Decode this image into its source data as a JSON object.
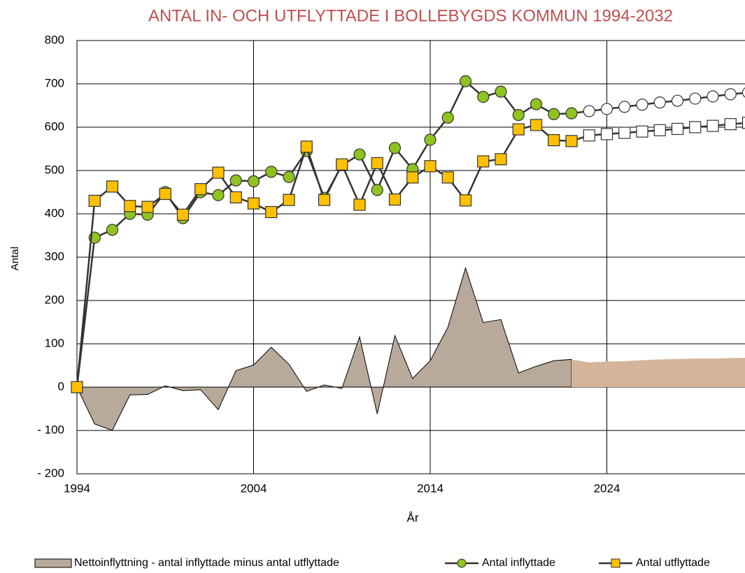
{
  "chart_data": {
    "type": "line",
    "title": "ANTAL IN- OCH UTFLYTTADE I BOLLEBYGDS KOMMUN 1994-2032",
    "x_label": "År",
    "y_label": "Antal",
    "x": [
      1994,
      1995,
      1996,
      1997,
      1998,
      1999,
      2000,
      2001,
      2002,
      2003,
      2004,
      2005,
      2006,
      2007,
      2008,
      2009,
      2010,
      2011,
      2012,
      2013,
      2014,
      2015,
      2016,
      2017,
      2018,
      2019,
      2020,
      2021,
      2022,
      2023,
      2024,
      2025,
      2026,
      2027,
      2028,
      2029,
      2030,
      2031,
      2032
    ],
    "series": [
      {
        "name": "Nettoinflyttning - antal inflyttade minus antal utflyttade",
        "type": "area",
        "color": "#b8a99a",
        "forecast_color": "#d4b59b",
        "values": [
          0,
          -85,
          -100,
          -18,
          -17,
          3,
          -8,
          -6,
          -52,
          38,
          51,
          92,
          53,
          -10,
          5,
          -3,
          116,
          -62,
          119,
          20,
          61,
          138,
          275,
          149,
          156,
          33,
          48,
          61,
          64,
          57,
          59,
          60,
          62,
          64,
          65,
          66,
          66,
          67,
          68
        ]
      },
      {
        "name": "Antal inflyttade",
        "type": "line",
        "marker": "circle",
        "color": "#8fc31f",
        "values": [
          0,
          345,
          363,
          400,
          398,
          450,
          390,
          450,
          443,
          477,
          475,
          497,
          485,
          545,
          437,
          512,
          537,
          455,
          552,
          503,
          571,
          622,
          706,
          670,
          682,
          628,
          653,
          630,
          632,
          637,
          642,
          647,
          652,
          657,
          661,
          666,
          671,
          676,
          680
        ]
      },
      {
        "name": "Antal utflyttade",
        "type": "line",
        "marker": "square",
        "color": "#ffc000",
        "values": [
          0,
          430,
          463,
          418,
          416,
          446,
          398,
          457,
          495,
          438,
          424,
          404,
          432,
          555,
          432,
          514,
          421,
          517,
          433,
          484,
          510,
          484,
          431,
          521,
          526,
          595,
          605,
          570,
          568,
          581,
          584,
          587,
          590,
          593,
          596,
          600,
          603,
          607,
          610
        ]
      }
    ],
    "forecast_from": 2022,
    "xlim": [
      1994,
      2032
    ],
    "xticks": [
      1994,
      2004,
      2014,
      2024
    ],
    "ylim": [
      -200,
      800
    ],
    "yticks": [
      {
        "value": -200,
        "label": "- 200"
      },
      {
        "value": -100,
        "label": "- 100"
      },
      0,
      100,
      200,
      300,
      400,
      500,
      600,
      700,
      800
    ],
    "grid": true,
    "legend": "bottom"
  }
}
